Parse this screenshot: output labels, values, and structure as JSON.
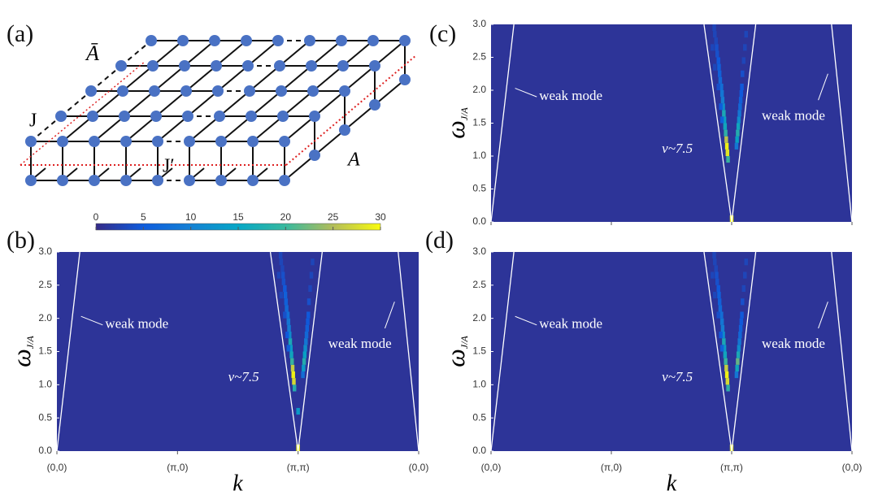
{
  "lattice": {
    "panel_label": "(a)",
    "a_bar": "Ā",
    "j": "J",
    "j_prime": "J′",
    "a": "A"
  },
  "colorbar": {
    "lim": [
      0,
      30
    ],
    "ticks": [
      0,
      5,
      10,
      15,
      20,
      25,
      30
    ],
    "colors": [
      "#352a87",
      "#0f5cdd",
      "#1481d4",
      "#06a7c6",
      "#38b99e",
      "#b3bd5a",
      "#f9fb0e"
    ]
  },
  "chart_data": [
    {
      "type": "heatmap",
      "panel_label": "(b)",
      "xlim": [
        0,
        3
      ],
      "ylim": [
        0,
        3
      ],
      "xticks": [
        {
          "value": 0,
          "label": "(0,0)"
        },
        {
          "value": 1,
          "label": "(π,0)"
        },
        {
          "value": 2,
          "label": "(π,π)"
        },
        {
          "value": 3,
          "label": "(0,0)"
        }
      ],
      "show_xtick_labels": true,
      "yticks": [
        {
          "value": 0,
          "label": "0.0"
        },
        {
          "value": 0.5,
          "label": "0.5"
        },
        {
          "value": 1,
          "label": "1.0"
        },
        {
          "value": 1.5,
          "label": "1.5"
        },
        {
          "value": 2,
          "label": "2.0"
        },
        {
          "value": 2.5,
          "label": "2.5"
        },
        {
          "value": 3,
          "label": "3.0"
        }
      ],
      "xlabel": "k",
      "ylabel": "ω",
      "ylabel_sub": "J/A",
      "background_value": 1,
      "cells": {
        "x": [
          1.97,
          1.965,
          1.96,
          1.955,
          1.95,
          1.945,
          1.94,
          1.935,
          1.93,
          1.925,
          1.92,
          1.915,
          1.905,
          1.9,
          1.895,
          1.89,
          1.88,
          1.875,
          1.87,
          1.86,
          1.855,
          1.92,
          1.91,
          1.89,
          1.86,
          1.84,
          2.04,
          2.045,
          2.05,
          2.055,
          2.06,
          2.065,
          2.07,
          2.075,
          2.08,
          2.085,
          2.09,
          2.1,
          2.11,
          2.12,
          2.0,
          2.0
        ],
        "y": [
          0.9,
          1.0,
          1.1,
          1.2,
          1.3,
          1.4,
          1.5,
          1.6,
          1.7,
          1.8,
          1.9,
          2.0,
          2.1,
          2.2,
          2.3,
          2.4,
          2.5,
          2.6,
          2.7,
          2.8,
          2.9,
          1.5,
          1.7,
          2.0,
          2.3,
          2.6,
          1.1,
          1.2,
          1.3,
          1.4,
          1.5,
          1.6,
          1.7,
          1.8,
          1.9,
          2.0,
          2.2,
          2.4,
          2.6,
          2.8,
          0.0,
          0.55
        ],
        "values": [
          18,
          28,
          30,
          27,
          20,
          16,
          14,
          17,
          12,
          10,
          9,
          8,
          7,
          6,
          6,
          5,
          4,
          4,
          3,
          3,
          3,
          6,
          5,
          4,
          3,
          3,
          8,
          14,
          18,
          15,
          12,
          9,
          7,
          6,
          5,
          5,
          4,
          3,
          3,
          3,
          30,
          14
        ]
      },
      "series": [
        {
          "color": "#ffffff",
          "x": [
            0,
            0.19
          ],
          "y": [
            0,
            3
          ]
        },
        {
          "color": "#ffffff",
          "x": [
            2,
            1.77
          ],
          "y": [
            0,
            3
          ]
        },
        {
          "color": "#ffffff",
          "x": [
            2,
            2.2
          ],
          "y": [
            0,
            3
          ]
        },
        {
          "color": "#ffffff",
          "x": [
            3,
            2.83
          ],
          "y": [
            0,
            3
          ]
        }
      ],
      "annotations": [
        {
          "text": "weak mode",
          "x": 0.4,
          "y": 1.9,
          "leader_x": [
            0.38,
            0.2
          ],
          "leader_y": [
            1.9,
            2.03
          ]
        },
        {
          "text": "weak mode",
          "x": 2.25,
          "y": 1.6,
          "leader_x": [
            2.72,
            2.8
          ],
          "leader_y": [
            1.85,
            2.25
          ]
        },
        {
          "text": "v~7.5",
          "x": 1.42,
          "y": 1.1
        }
      ]
    },
    {
      "type": "heatmap",
      "panel_label": "(c)",
      "xlim": [
        0,
        3
      ],
      "ylim": [
        0,
        3
      ],
      "xticks": [
        0,
        1,
        2,
        3
      ],
      "show_xtick_labels": false,
      "yticks": [
        {
          "value": 0,
          "label": "0.0"
        },
        {
          "value": 0.5,
          "label": "0.5"
        },
        {
          "value": 1,
          "label": "1.0"
        },
        {
          "value": 1.5,
          "label": "1.5"
        },
        {
          "value": 2,
          "label": "2.0"
        },
        {
          "value": 2.5,
          "label": "2.5"
        },
        {
          "value": 3,
          "label": "3.0"
        }
      ],
      "ylabel": "ω",
      "ylabel_sub": "J/A",
      "background_value": 1,
      "cells": {
        "x": [
          1.97,
          1.965,
          1.96,
          1.955,
          1.95,
          1.945,
          1.94,
          1.935,
          1.93,
          1.925,
          1.92,
          1.915,
          1.905,
          1.9,
          1.895,
          1.89,
          1.88,
          1.875,
          1.87,
          1.86,
          1.855,
          1.92,
          1.91,
          1.89,
          1.86,
          1.84,
          2.04,
          2.045,
          2.05,
          2.055,
          2.06,
          2.065,
          2.07,
          2.075,
          2.08,
          2.085,
          2.09,
          2.1,
          2.11,
          2.12,
          2.0
        ],
        "y": [
          0.9,
          1.0,
          1.1,
          1.2,
          1.3,
          1.4,
          1.5,
          1.6,
          1.7,
          1.8,
          1.9,
          2.0,
          2.1,
          2.2,
          2.3,
          2.4,
          2.5,
          2.6,
          2.7,
          2.8,
          2.9,
          1.5,
          1.7,
          2.0,
          2.3,
          2.6,
          1.1,
          1.2,
          1.3,
          1.4,
          1.5,
          1.6,
          1.7,
          1.8,
          1.9,
          2.0,
          2.2,
          2.4,
          2.6,
          2.8,
          0.0
        ],
        "values": [
          20,
          29,
          30,
          26,
          19,
          16,
          15,
          17,
          12,
          10,
          9,
          8,
          7,
          6,
          6,
          5,
          4,
          4,
          3,
          3,
          3,
          6,
          5,
          4,
          3,
          3,
          9,
          15,
          18,
          16,
          12,
          9,
          7,
          6,
          5,
          5,
          4,
          3,
          3,
          3,
          30
        ]
      },
      "series": [
        {
          "color": "#ffffff",
          "x": [
            0,
            0.19
          ],
          "y": [
            0,
            3
          ]
        },
        {
          "color": "#ffffff",
          "x": [
            2,
            1.77
          ],
          "y": [
            0,
            3
          ]
        },
        {
          "color": "#ffffff",
          "x": [
            2,
            2.2
          ],
          "y": [
            0,
            3
          ]
        },
        {
          "color": "#ffffff",
          "x": [
            3,
            2.83
          ],
          "y": [
            0,
            3
          ]
        }
      ],
      "annotations": [
        {
          "text": "weak mode",
          "x": 0.4,
          "y": 1.9,
          "leader_x": [
            0.38,
            0.2
          ],
          "leader_y": [
            1.9,
            2.03
          ]
        },
        {
          "text": "weak mode",
          "x": 2.25,
          "y": 1.6,
          "leader_x": [
            2.72,
            2.8
          ],
          "leader_y": [
            1.85,
            2.25
          ]
        },
        {
          "text": "v~7.5",
          "x": 1.42,
          "y": 1.1
        }
      ]
    },
    {
      "type": "heatmap",
      "panel_label": "(d)",
      "xlim": [
        0,
        3
      ],
      "ylim": [
        0,
        3
      ],
      "xticks": [
        {
          "value": 0,
          "label": "(0,0)"
        },
        {
          "value": 1,
          "label": "(π,0)"
        },
        {
          "value": 2,
          "label": "(π,π)"
        },
        {
          "value": 3,
          "label": "(0,0)"
        }
      ],
      "show_xtick_labels": true,
      "yticks": [
        {
          "value": 0,
          "label": "0.0"
        },
        {
          "value": 0.5,
          "label": "0.5"
        },
        {
          "value": 1,
          "label": "1.0"
        },
        {
          "value": 1.5,
          "label": "1.5"
        },
        {
          "value": 2,
          "label": "2.0"
        },
        {
          "value": 2.5,
          "label": "2.5"
        },
        {
          "value": 3,
          "label": "3.0"
        }
      ],
      "xlabel": "k",
      "ylabel": "ω",
      "ylabel_sub": "J/A",
      "background_value": 1,
      "cells": {
        "x": [
          1.97,
          1.965,
          1.96,
          1.955,
          1.95,
          1.945,
          1.94,
          1.935,
          1.93,
          1.925,
          1.92,
          1.915,
          1.905,
          1.9,
          1.895,
          1.89,
          1.88,
          1.875,
          1.87,
          1.86,
          1.855,
          1.92,
          1.91,
          1.89,
          1.86,
          1.84,
          2.04,
          2.045,
          2.05,
          2.055,
          2.06,
          2.065,
          2.07,
          2.075,
          2.08,
          2.085,
          2.09,
          2.1,
          2.11,
          2.12,
          2.0
        ],
        "y": [
          0.9,
          1.0,
          1.1,
          1.2,
          1.3,
          1.4,
          1.5,
          1.6,
          1.7,
          1.8,
          1.9,
          2.0,
          2.1,
          2.2,
          2.3,
          2.4,
          2.5,
          2.6,
          2.7,
          2.8,
          2.9,
          1.5,
          1.7,
          2.0,
          2.3,
          2.6,
          1.1,
          1.2,
          1.3,
          1.4,
          1.5,
          1.6,
          1.7,
          1.8,
          1.9,
          2.0,
          2.2,
          2.4,
          2.6,
          2.8,
          0.0
        ],
        "values": [
          19,
          28,
          30,
          27,
          20,
          16,
          14,
          17,
          12,
          10,
          9,
          8,
          7,
          6,
          6,
          5,
          4,
          4,
          3,
          3,
          3,
          6,
          5,
          4,
          3,
          3,
          9,
          16,
          22,
          17,
          12,
          9,
          7,
          6,
          5,
          5,
          4,
          3,
          3,
          3,
          28
        ]
      },
      "series": [
        {
          "color": "#ffffff",
          "x": [
            0,
            0.19
          ],
          "y": [
            0,
            3
          ]
        },
        {
          "color": "#ffffff",
          "x": [
            2,
            1.77
          ],
          "y": [
            0,
            3
          ]
        },
        {
          "color": "#ffffff",
          "x": [
            2,
            2.2
          ],
          "y": [
            0,
            3
          ]
        },
        {
          "color": "#ffffff",
          "x": [
            3,
            2.83
          ],
          "y": [
            0,
            3
          ]
        }
      ],
      "annotations": [
        {
          "text": "weak mode",
          "x": 0.4,
          "y": 1.9,
          "leader_x": [
            0.38,
            0.2
          ],
          "leader_y": [
            1.9,
            2.03
          ]
        },
        {
          "text": "weak mode",
          "x": 2.25,
          "y": 1.6,
          "leader_x": [
            2.72,
            2.8
          ],
          "leader_y": [
            1.85,
            2.25
          ]
        },
        {
          "text": "v~7.5",
          "x": 1.42,
          "y": 1.1
        }
      ]
    }
  ]
}
